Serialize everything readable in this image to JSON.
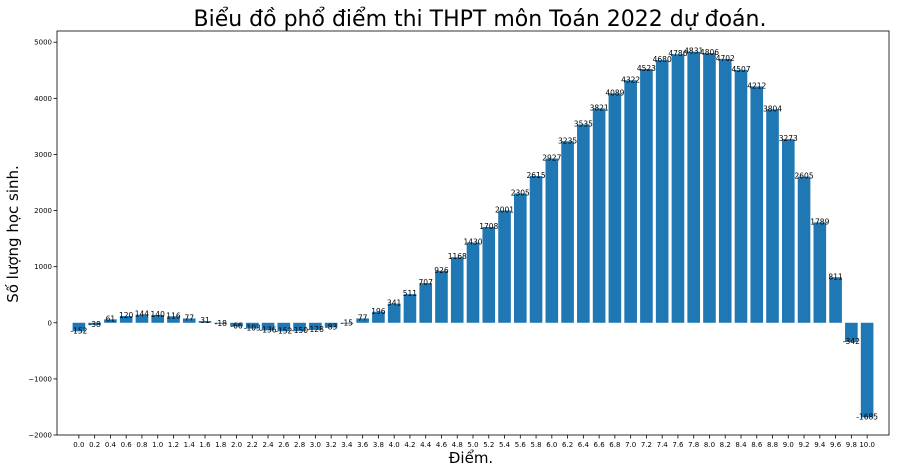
{
  "chart_data": {
    "type": "bar",
    "title": "Biểu đồ phổ điểm thi THPT môn Toán 2022 dự đoán.",
    "xlabel": "Điểm.",
    "ylabel": "Số lượng học sinh.",
    "ylim": [
      -2000,
      5200
    ],
    "yticks": [
      "−2000",
      "−1000",
      "0",
      "1000",
      "2000",
      "3000",
      "4000",
      "5000"
    ],
    "ytick_values": [
      -2000,
      -1000,
      0,
      1000,
      2000,
      3000,
      4000,
      5000
    ],
    "grid": false,
    "bar_color": "#1f77b4",
    "categories": [
      "0.0",
      "0.2",
      "0.4",
      "0.6",
      "0.8",
      "1.0",
      "1.2",
      "1.4",
      "1.6",
      "1.8",
      "2.0",
      "2.2",
      "2.4",
      "2.6",
      "2.8",
      "3.0",
      "3.2",
      "3.4",
      "3.6",
      "3.8",
      "4.0",
      "4.2",
      "4.4",
      "4.6",
      "4.8",
      "5.0",
      "5.2",
      "5.4",
      "5.6",
      "5.8",
      "6.0",
      "6.2",
      "6.4",
      "6.6",
      "6.8",
      "7.0",
      "7.2",
      "7.4",
      "7.6",
      "7.8",
      "8.0",
      "8.2",
      "8.4",
      "8.6",
      "8.8",
      "9.0",
      "9.2",
      "9.4",
      "9.6",
      "9.8",
      "10.0"
    ],
    "values": [
      -152,
      -38,
      61,
      120,
      144,
      140,
      116,
      77,
      31,
      -18,
      -66,
      -103,
      -136,
      -152,
      -150,
      -128,
      -83,
      -15,
      77,
      196,
      341,
      511,
      707,
      926,
      1168,
      1430,
      1708,
      2001,
      2305,
      2615,
      2927,
      3235,
      3535,
      3821,
      4089,
      4322,
      4523,
      4680,
      4786,
      4831,
      4806,
      4702,
      4507,
      4212,
      3804,
      3273,
      2605,
      1789,
      811,
      -342,
      -1685
    ],
    "labels": [
      "-152",
      "-38",
      "61",
      "120",
      "144",
      "140",
      "116",
      "77",
      "31",
      "-18",
      "-66",
      "-103",
      "-136",
      "-152",
      "-150",
      "-128",
      "-83",
      "-15",
      "77",
      "196",
      "341",
      "511",
      "707",
      "926",
      "1168",
      "1430",
      "1708",
      "2001",
      "2305",
      "2615",
      "2927",
      "3235",
      "3535",
      "3821",
      "4089",
      "4322",
      "4523",
      "4680",
      "4786",
      "4831",
      "4806",
      "4702",
      "4507",
      "4212",
      "3804",
      "3273",
      "2605",
      "1789",
      "811",
      "-342",
      "-1685"
    ]
  }
}
